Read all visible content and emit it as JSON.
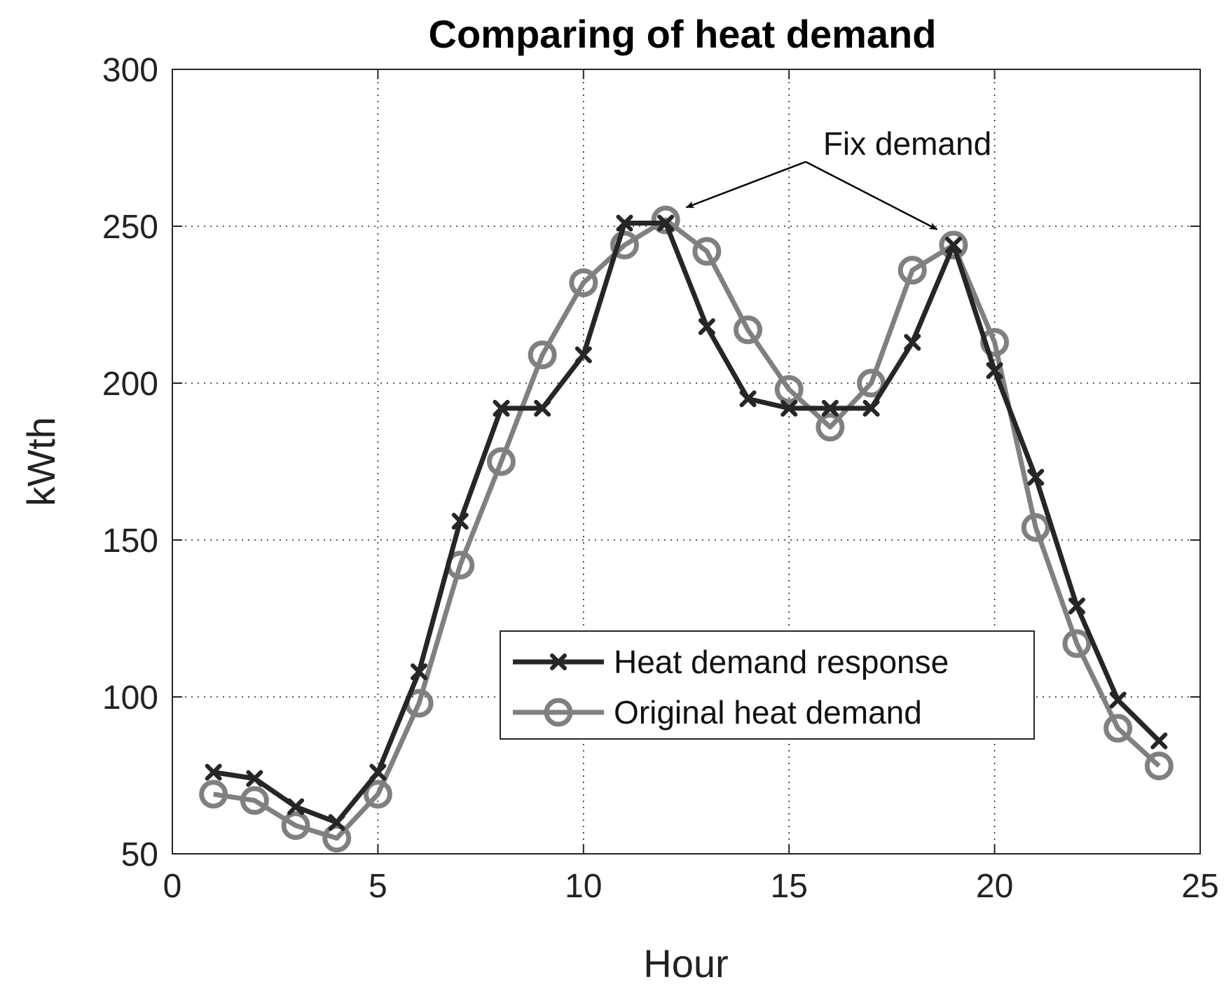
{
  "chart_data": {
    "type": "line",
    "title": "Comparing of heat demand",
    "xlabel": "Hour",
    "ylabel": "kWth",
    "xlim": [
      0,
      25
    ],
    "ylim": [
      50,
      300
    ],
    "xticks": [
      0,
      5,
      10,
      15,
      20,
      25
    ],
    "yticks": [
      50,
      100,
      150,
      200,
      250,
      300
    ],
    "grid": true,
    "legend_position": "center-right",
    "x": [
      1,
      2,
      3,
      4,
      5,
      6,
      7,
      8,
      9,
      10,
      11,
      12,
      13,
      14,
      15,
      16,
      17,
      18,
      19,
      20,
      21,
      22,
      23,
      24
    ],
    "series": [
      {
        "name": "Heat demand response",
        "color": "#262626",
        "marker": "x",
        "values": [
          76,
          74,
          65,
          60,
          76,
          108,
          156,
          192,
          192,
          209,
          251,
          251,
          218,
          195,
          192,
          192,
          192,
          213,
          244,
          204,
          170,
          129,
          99,
          86
        ]
      },
      {
        "name": "Original heat demand",
        "color": "#808080",
        "marker": "o",
        "values": [
          69,
          67,
          59,
          55,
          69,
          98,
          142,
          175,
          209,
          232,
          244,
          252,
          242,
          217,
          198,
          186,
          200,
          236,
          244,
          213,
          154,
          117,
          90,
          78
        ]
      }
    ],
    "annotation": {
      "text": "Fix demand",
      "targets": [
        {
          "x": 12.5,
          "y": 256
        },
        {
          "x": 18.6,
          "y": 249
        }
      ]
    }
  }
}
